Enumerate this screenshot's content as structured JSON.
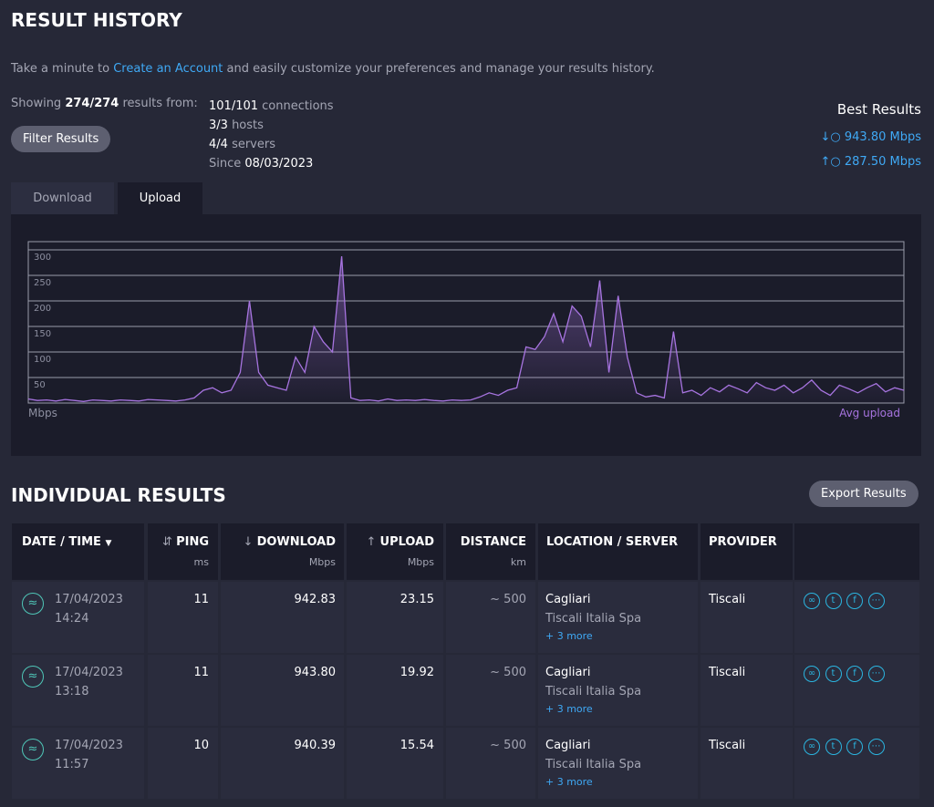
{
  "header": {
    "title": "RESULT HISTORY"
  },
  "intro": {
    "before": "Take a minute to",
    "link": "Create an Account",
    "after": "and easily customize your preferences and manage your results history."
  },
  "summary": {
    "showing": "Showing",
    "count": "274/274",
    "from": "results from:",
    "connections_count": "101/101",
    "connections": "connections",
    "hosts_count": "3/3",
    "hosts": "hosts",
    "servers_count": "4/4",
    "servers": "servers",
    "since": "Since",
    "since_date": "08/03/2023"
  },
  "filter_button": "Filter Results",
  "best_results": {
    "title": "Best Results",
    "download": "943.80 Mbps",
    "upload": "287.50 Mbps"
  },
  "tabs": [
    "Download",
    "Upload"
  ],
  "chart_data": {
    "type": "line",
    "y_label": "Mbps",
    "ylim": [
      0,
      316
    ],
    "yticks": [
      50,
      100,
      150,
      200,
      250,
      300
    ],
    "grid": true,
    "series": [
      {
        "name": "Avg upload",
        "color": "#a774e0",
        "values": [
          8,
          5,
          6,
          4,
          7,
          5,
          3,
          6,
          5,
          4,
          6,
          5,
          4,
          7,
          6,
          5,
          4,
          6,
          10,
          25,
          30,
          20,
          25,
          60,
          200,
          60,
          35,
          30,
          25,
          90,
          60,
          150,
          120,
          100,
          287.5,
          10,
          5,
          6,
          4,
          8,
          5,
          6,
          5,
          7,
          5,
          4,
          6,
          5,
          6,
          12,
          20,
          15,
          25,
          30,
          110,
          105,
          130,
          175,
          120,
          190,
          170,
          110,
          240,
          60,
          210,
          90,
          20,
          12,
          15,
          10,
          140,
          20,
          25,
          15,
          30,
          22,
          35,
          28,
          20,
          40,
          30,
          25,
          35,
          20,
          30,
          45,
          25,
          15,
          35,
          28,
          20,
          30,
          38,
          22,
          30,
          25
        ]
      }
    ]
  },
  "individual_results": {
    "title": "INDIVIDUAL RESULTS",
    "export_button": "Export Results",
    "columns": [
      {
        "label": "DATE / TIME"
      },
      {
        "label": "PING",
        "unit": "ms"
      },
      {
        "label": "DOWNLOAD",
        "unit": "Mbps"
      },
      {
        "label": "UPLOAD",
        "unit": "Mbps"
      },
      {
        "label": "DISTANCE",
        "unit": "km"
      },
      {
        "label": "LOCATION / SERVER"
      },
      {
        "label": "PROVIDER"
      }
    ],
    "rows": [
      {
        "date": "17/04/2023",
        "time": "14:24",
        "ping": "11",
        "download": "942.83",
        "upload": "23.15",
        "distance": "~ 500",
        "location": "Cagliari",
        "server": "Tiscali Italia Spa",
        "more": "+ 3 more",
        "provider": "Tiscali"
      },
      {
        "date": "17/04/2023",
        "time": "13:18",
        "ping": "11",
        "download": "943.80",
        "upload": "19.92",
        "distance": "~ 500",
        "location": "Cagliari",
        "server": "Tiscali Italia Spa",
        "more": "+ 3 more",
        "provider": "Tiscali"
      },
      {
        "date": "17/04/2023",
        "time": "11:57",
        "ping": "10",
        "download": "940.39",
        "upload": "15.54",
        "distance": "~ 500",
        "location": "Cagliari",
        "server": "Tiscali Italia Spa",
        "more": "+ 3 more",
        "provider": "Tiscali"
      }
    ]
  }
}
